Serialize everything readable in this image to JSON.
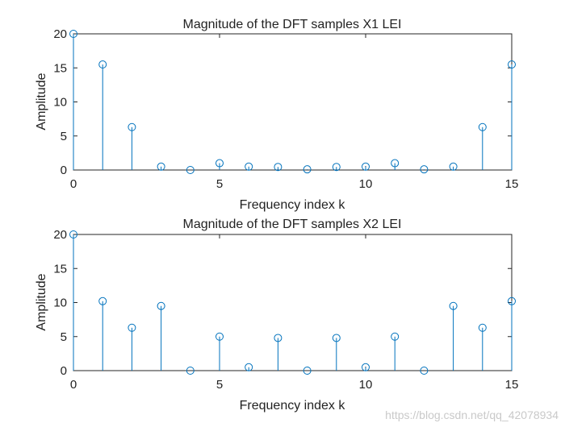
{
  "chart_data": [
    {
      "type": "stem",
      "title": "Magnitude of the DFT samples X1 LEI",
      "xlabel": "Frequency index k",
      "ylabel": "Amplitude",
      "xlim": [
        0,
        15
      ],
      "ylim": [
        0,
        20
      ],
      "xticks": [
        0,
        5,
        10,
        15
      ],
      "yticks": [
        0,
        5,
        10,
        15,
        20
      ],
      "grid": false,
      "x": [
        0,
        1,
        2,
        3,
        4,
        5,
        6,
        7,
        8,
        9,
        10,
        11,
        12,
        13,
        14,
        15
      ],
      "values": [
        20,
        15.5,
        6.3,
        0.5,
        0,
        1.0,
        0.5,
        0.45,
        0.1,
        0.45,
        0.5,
        1.0,
        0.1,
        0.5,
        6.3,
        15.5
      ],
      "color": "#0072BD"
    },
    {
      "type": "stem",
      "title": "Magnitude of the DFT samples X2 LEI",
      "xlabel": "Frequency index k",
      "ylabel": "Amplitude",
      "xlim": [
        0,
        15
      ],
      "ylim": [
        0,
        20
      ],
      "xticks": [
        0,
        5,
        10,
        15
      ],
      "yticks": [
        0,
        5,
        10,
        15,
        20
      ],
      "grid": false,
      "x": [
        0,
        1,
        2,
        3,
        4,
        5,
        6,
        7,
        8,
        9,
        10,
        11,
        12,
        13,
        14,
        15
      ],
      "values": [
        20,
        10.2,
        6.3,
        9.5,
        0,
        5.0,
        0.5,
        4.8,
        0,
        4.8,
        0.5,
        5.0,
        0,
        9.5,
        6.3,
        10.2
      ],
      "color": "#0072BD"
    }
  ],
  "watermark": "https://blog.csdn.net/qq_42078934"
}
